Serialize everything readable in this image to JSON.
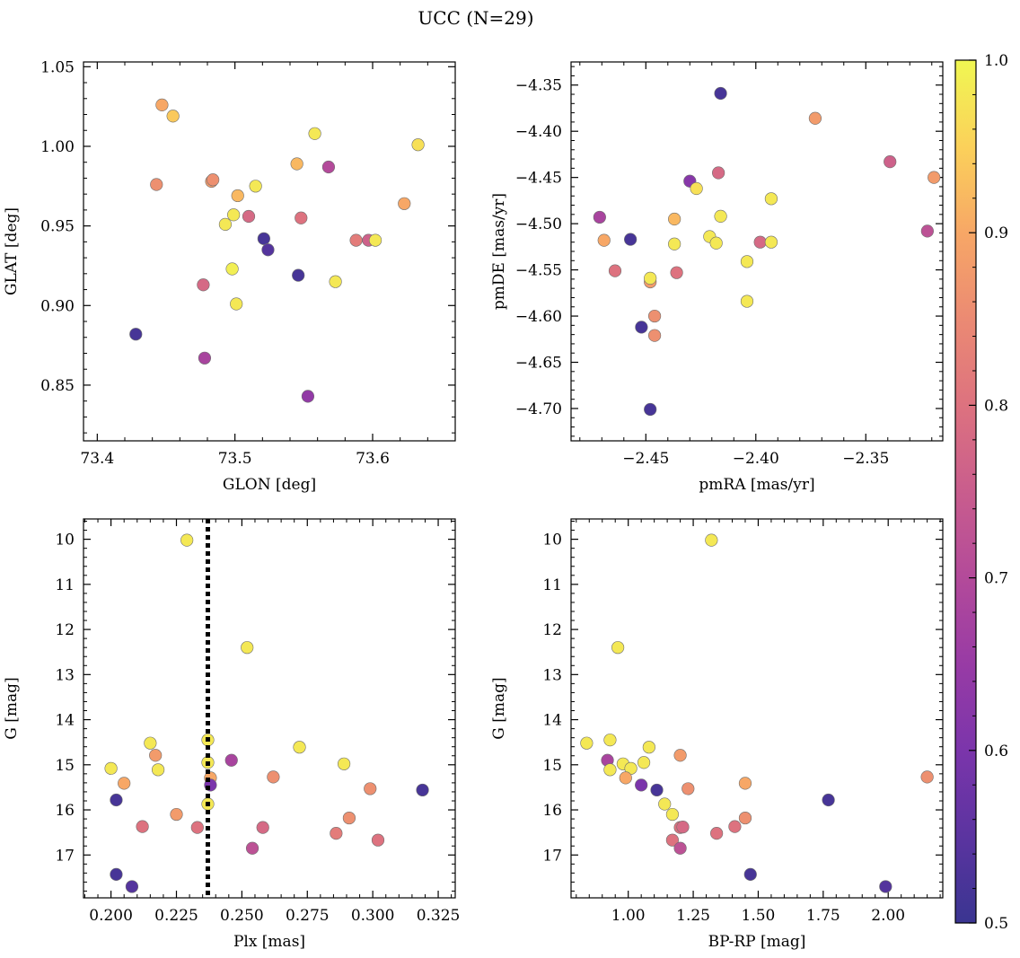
{
  "figure": {
    "title": "UCC (N=29)"
  },
  "colorbar": {
    "range": [
      0.5,
      1.0
    ],
    "ticks": [
      0.5,
      0.6,
      0.7,
      0.8,
      0.9,
      1.0
    ],
    "tick_labels": [
      "0.5",
      "0.6",
      "0.7",
      "0.8",
      "0.9",
      "1.0"
    ],
    "colormap": "plasma"
  },
  "chart_data": [
    {
      "type": "scatter",
      "id": "glon-glat",
      "xlabel": "GLON [deg]",
      "ylabel": "GLAT [deg]",
      "xlim": [
        73.39,
        73.66
      ],
      "ylim": [
        0.815,
        1.053
      ],
      "y_inverted": false,
      "xticks": [
        73.4,
        73.5,
        73.6
      ],
      "xtick_labels": [
        "73.4",
        "73.5",
        "73.6"
      ],
      "yticks": [
        0.85,
        0.9,
        0.95,
        1.0,
        1.05
      ],
      "ytick_labels": [
        "0.85",
        "0.90",
        "0.95",
        "1.00",
        "1.05"
      ],
      "points": [
        {
          "x": 73.428,
          "y": 0.882,
          "c": 0.52
        },
        {
          "x": 73.478,
          "y": 0.867,
          "c": 0.68
        },
        {
          "x": 73.553,
          "y": 0.843,
          "c": 0.64
        },
        {
          "x": 73.447,
          "y": 1.026,
          "c": 0.9
        },
        {
          "x": 73.455,
          "y": 1.019,
          "c": 0.94
        },
        {
          "x": 73.443,
          "y": 0.976,
          "c": 0.86
        },
        {
          "x": 73.483,
          "y": 0.978,
          "c": 0.88
        },
        {
          "x": 73.484,
          "y": 0.979,
          "c": 0.86
        },
        {
          "x": 73.502,
          "y": 0.969,
          "c": 0.92
        },
        {
          "x": 73.515,
          "y": 0.975,
          "c": 0.98
        },
        {
          "x": 73.499,
          "y": 0.957,
          "c": 0.98
        },
        {
          "x": 73.493,
          "y": 0.951,
          "c": 0.98
        },
        {
          "x": 73.51,
          "y": 0.956,
          "c": 0.78
        },
        {
          "x": 73.521,
          "y": 0.942,
          "c": 0.52
        },
        {
          "x": 73.524,
          "y": 0.935,
          "c": 0.54
        },
        {
          "x": 73.498,
          "y": 0.923,
          "c": 0.99
        },
        {
          "x": 73.477,
          "y": 0.913,
          "c": 0.78
        },
        {
          "x": 73.501,
          "y": 0.901,
          "c": 0.98
        },
        {
          "x": 73.546,
          "y": 0.919,
          "c": 0.52
        },
        {
          "x": 73.573,
          "y": 0.915,
          "c": 0.98
        },
        {
          "x": 73.558,
          "y": 1.008,
          "c": 0.98
        },
        {
          "x": 73.545,
          "y": 0.989,
          "c": 0.92
        },
        {
          "x": 73.568,
          "y": 0.987,
          "c": 0.7
        },
        {
          "x": 73.548,
          "y": 0.955,
          "c": 0.8
        },
        {
          "x": 73.588,
          "y": 0.941,
          "c": 0.82
        },
        {
          "x": 73.597,
          "y": 0.941,
          "c": 0.76
        },
        {
          "x": 73.602,
          "y": 0.941,
          "c": 0.98
        },
        {
          "x": 73.623,
          "y": 0.964,
          "c": 0.9
        },
        {
          "x": 73.633,
          "y": 1.001,
          "c": 0.97
        }
      ]
    },
    {
      "type": "scatter",
      "id": "pmra-pmde",
      "xlabel": "pmRA [mas/yr]",
      "ylabel": "pmDE [mas/yr]",
      "xlim": [
        -2.484,
        -2.315
      ],
      "ylim": [
        -4.735,
        -4.325
      ],
      "y_inverted": false,
      "xticks": [
        -2.45,
        -2.4,
        -2.35
      ],
      "xtick_labels": [
        "−2.45",
        "−2.40",
        "−2.35"
      ],
      "yticks": [
        -4.7,
        -4.65,
        -4.6,
        -4.55,
        -4.5,
        -4.45,
        -4.4,
        -4.35
      ],
      "ytick_labels": [
        "−4.70",
        "−4.65",
        "−4.60",
        "−4.55",
        "−4.50",
        "−4.45",
        "−4.40",
        "−4.35"
      ],
      "points": [
        {
          "x": -2.416,
          "y": -4.359,
          "c": 0.52
        },
        {
          "x": -2.373,
          "y": -4.386,
          "c": 0.88
        },
        {
          "x": -2.339,
          "y": -4.433,
          "c": 0.76
        },
        {
          "x": -2.319,
          "y": -4.45,
          "c": 0.88
        },
        {
          "x": -2.417,
          "y": -4.445,
          "c": 0.78
        },
        {
          "x": -2.43,
          "y": -4.454,
          "c": 0.62
        },
        {
          "x": -2.427,
          "y": -4.462,
          "c": 0.97
        },
        {
          "x": -2.393,
          "y": -4.473,
          "c": 0.98
        },
        {
          "x": -2.471,
          "y": -4.493,
          "c": 0.68
        },
        {
          "x": -2.416,
          "y": -4.492,
          "c": 0.98
        },
        {
          "x": -2.437,
          "y": -4.495,
          "c": 0.92
        },
        {
          "x": -2.469,
          "y": -4.518,
          "c": 0.9
        },
        {
          "x": -2.457,
          "y": -4.517,
          "c": 0.52
        },
        {
          "x": -2.421,
          "y": -4.514,
          "c": 0.98
        },
        {
          "x": -2.437,
          "y": -4.522,
          "c": 0.98
        },
        {
          "x": -2.418,
          "y": -4.521,
          "c": 0.98
        },
        {
          "x": -2.398,
          "y": -4.52,
          "c": 0.78
        },
        {
          "x": -2.393,
          "y": -4.52,
          "c": 0.98
        },
        {
          "x": -2.322,
          "y": -4.508,
          "c": 0.72
        },
        {
          "x": -2.464,
          "y": -4.551,
          "c": 0.8
        },
        {
          "x": -2.436,
          "y": -4.553,
          "c": 0.8
        },
        {
          "x": -2.404,
          "y": -4.541,
          "c": 0.98
        },
        {
          "x": -2.448,
          "y": -4.563,
          "c": 0.88
        },
        {
          "x": -2.448,
          "y": -4.559,
          "c": 0.98
        },
        {
          "x": -2.404,
          "y": -4.584,
          "c": 0.98
        },
        {
          "x": -2.446,
          "y": -4.6,
          "c": 0.86
        },
        {
          "x": -2.452,
          "y": -4.612,
          "c": 0.52
        },
        {
          "x": -2.446,
          "y": -4.621,
          "c": 0.86
        },
        {
          "x": -2.448,
          "y": -4.701,
          "c": 0.52
        }
      ]
    },
    {
      "type": "scatter",
      "id": "plx-g",
      "xlabel": "Plx [mas]",
      "ylabel": "G [mag]",
      "xlim": [
        0.1895,
        0.3315
      ],
      "ylim": [
        17.95,
        9.55
      ],
      "y_inverted": true,
      "vline": {
        "x": 0.237,
        "style": "dotted",
        "color": "#000000"
      },
      "xticks": [
        0.2,
        0.225,
        0.25,
        0.275,
        0.3,
        0.325
      ],
      "xtick_labels": [
        "0.200",
        "0.225",
        "0.250",
        "0.275",
        "0.300",
        "0.325"
      ],
      "yticks": [
        10,
        11,
        12,
        13,
        14,
        15,
        16,
        17
      ],
      "ytick_labels": [
        "10",
        "11",
        "12",
        "13",
        "14",
        "15",
        "16",
        "17"
      ],
      "points": [
        {
          "x": 0.229,
          "y": 10.02,
          "c": 0.98
        },
        {
          "x": 0.252,
          "y": 12.4,
          "c": 0.98
        },
        {
          "x": 0.215,
          "y": 14.52,
          "c": 0.98
        },
        {
          "x": 0.237,
          "y": 14.45,
          "c": 0.98
        },
        {
          "x": 0.272,
          "y": 14.61,
          "c": 0.98
        },
        {
          "x": 0.217,
          "y": 14.79,
          "c": 0.88
        },
        {
          "x": 0.237,
          "y": 14.95,
          "c": 0.98
        },
        {
          "x": 0.246,
          "y": 14.9,
          "c": 0.68
        },
        {
          "x": 0.289,
          "y": 14.98,
          "c": 0.98
        },
        {
          "x": 0.2,
          "y": 15.08,
          "c": 0.98
        },
        {
          "x": 0.218,
          "y": 15.11,
          "c": 0.98
        },
        {
          "x": 0.205,
          "y": 15.41,
          "c": 0.9
        },
        {
          "x": 0.238,
          "y": 15.29,
          "c": 0.9
        },
        {
          "x": 0.238,
          "y": 15.45,
          "c": 0.6
        },
        {
          "x": 0.262,
          "y": 15.27,
          "c": 0.86
        },
        {
          "x": 0.299,
          "y": 15.53,
          "c": 0.86
        },
        {
          "x": 0.319,
          "y": 15.56,
          "c": 0.52
        },
        {
          "x": 0.202,
          "y": 15.78,
          "c": 0.52
        },
        {
          "x": 0.237,
          "y": 15.87,
          "c": 0.98
        },
        {
          "x": 0.225,
          "y": 16.1,
          "c": 0.88
        },
        {
          "x": 0.212,
          "y": 16.37,
          "c": 0.8
        },
        {
          "x": 0.233,
          "y": 16.39,
          "c": 0.8
        },
        {
          "x": 0.258,
          "y": 16.39,
          "c": 0.78
        },
        {
          "x": 0.291,
          "y": 16.18,
          "c": 0.86
        },
        {
          "x": 0.286,
          "y": 16.52,
          "c": 0.82
        },
        {
          "x": 0.302,
          "y": 16.67,
          "c": 0.8
        },
        {
          "x": 0.254,
          "y": 16.85,
          "c": 0.72
        },
        {
          "x": 0.202,
          "y": 17.43,
          "c": 0.52
        },
        {
          "x": 0.208,
          "y": 17.7,
          "c": 0.54
        }
      ]
    },
    {
      "type": "scatter",
      "id": "bprp-g",
      "xlabel": "BP-RP [mag]",
      "ylabel": "G [mag]",
      "xlim": [
        0.78,
        2.21
      ],
      "ylim": [
        17.95,
        9.55
      ],
      "y_inverted": true,
      "xticks": [
        1.0,
        1.25,
        1.5,
        1.75,
        2.0
      ],
      "xtick_labels": [
        "1.00",
        "1.25",
        "1.50",
        "1.75",
        "2.00"
      ],
      "yticks": [
        10,
        11,
        12,
        13,
        14,
        15,
        16,
        17
      ],
      "ytick_labels": [
        "10",
        "11",
        "12",
        "13",
        "14",
        "15",
        "16",
        "17"
      ],
      "points": [
        {
          "x": 1.32,
          "y": 10.02,
          "c": 0.98
        },
        {
          "x": 0.96,
          "y": 12.4,
          "c": 0.98
        },
        {
          "x": 0.84,
          "y": 14.52,
          "c": 0.98
        },
        {
          "x": 0.93,
          "y": 14.45,
          "c": 0.98
        },
        {
          "x": 1.08,
          "y": 14.61,
          "c": 0.98
        },
        {
          "x": 0.92,
          "y": 14.9,
          "c": 0.68
        },
        {
          "x": 0.98,
          "y": 14.98,
          "c": 0.98
        },
        {
          "x": 1.06,
          "y": 14.95,
          "c": 0.98
        },
        {
          "x": 1.2,
          "y": 14.79,
          "c": 0.88
        },
        {
          "x": 0.93,
          "y": 15.11,
          "c": 0.98
        },
        {
          "x": 1.01,
          "y": 15.08,
          "c": 0.98
        },
        {
          "x": 0.99,
          "y": 15.29,
          "c": 0.9
        },
        {
          "x": 1.05,
          "y": 15.45,
          "c": 0.6
        },
        {
          "x": 1.11,
          "y": 15.56,
          "c": 0.52
        },
        {
          "x": 1.23,
          "y": 15.53,
          "c": 0.86
        },
        {
          "x": 1.45,
          "y": 15.41,
          "c": 0.9
        },
        {
          "x": 2.15,
          "y": 15.27,
          "c": 0.86
        },
        {
          "x": 1.77,
          "y": 15.78,
          "c": 0.52
        },
        {
          "x": 1.14,
          "y": 15.87,
          "c": 0.98
        },
        {
          "x": 1.17,
          "y": 16.1,
          "c": 0.98
        },
        {
          "x": 1.45,
          "y": 16.18,
          "c": 0.86
        },
        {
          "x": 1.2,
          "y": 16.39,
          "c": 0.8
        },
        {
          "x": 1.21,
          "y": 16.38,
          "c": 0.78
        },
        {
          "x": 1.41,
          "y": 16.37,
          "c": 0.8
        },
        {
          "x": 1.34,
          "y": 16.52,
          "c": 0.8
        },
        {
          "x": 1.17,
          "y": 16.67,
          "c": 0.8
        },
        {
          "x": 1.2,
          "y": 16.85,
          "c": 0.72
        },
        {
          "x": 1.47,
          "y": 17.43,
          "c": 0.52
        },
        {
          "x": 1.99,
          "y": 17.7,
          "c": 0.54
        }
      ]
    }
  ]
}
